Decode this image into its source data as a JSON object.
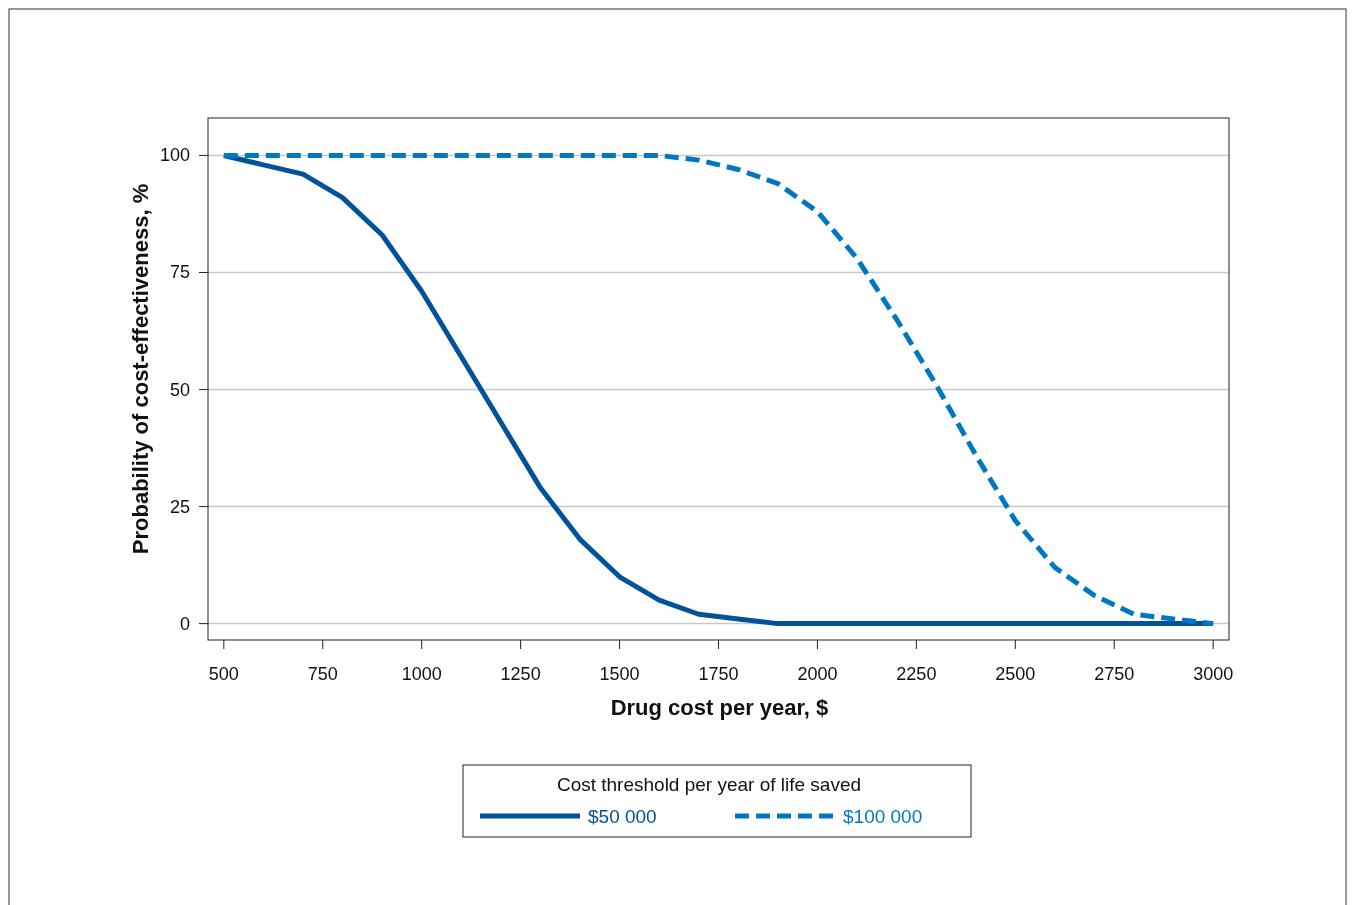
{
  "chart_data": {
    "type": "line",
    "xlabel": "Drug cost per year, $",
    "ylabel": "Probability of cost-effectiveness, %",
    "legend_title": "Cost threshold per year of life saved",
    "legend": "bottom",
    "grid": "y",
    "x": [
      500,
      600,
      700,
      800,
      900,
      1000,
      1100,
      1200,
      1300,
      1400,
      1500,
      1600,
      1700,
      1800,
      1900,
      2000,
      2100,
      2200,
      2300,
      2400,
      2500,
      2600,
      2700,
      2800,
      2900,
      3000
    ],
    "xlim": [
      460,
      3040
    ],
    "xticks": [
      500,
      750,
      1000,
      1250,
      1500,
      1750,
      2000,
      2250,
      2500,
      2750,
      3000
    ],
    "ylim": [
      -3.5,
      108
    ],
    "yticks": [
      0,
      25,
      50,
      75,
      100
    ],
    "series": [
      {
        "name": "$50 000",
        "color": "#00539b",
        "line_style": "solid",
        "values": [
          100,
          98,
          96,
          91,
          83,
          71,
          57,
          43,
          29,
          18,
          10,
          5,
          2,
          1,
          0,
          0,
          0,
          0,
          0,
          0,
          0,
          0,
          0,
          0,
          0,
          0
        ]
      },
      {
        "name": "$100 000",
        "color": "#0078c1",
        "line_style": "dashed",
        "values": [
          100,
          100,
          100,
          100,
          100,
          100,
          100,
          100,
          100,
          100,
          100,
          100,
          99,
          97,
          94,
          88,
          78,
          65,
          51,
          36,
          22,
          12,
          6,
          2,
          1,
          0
        ]
      }
    ]
  }
}
